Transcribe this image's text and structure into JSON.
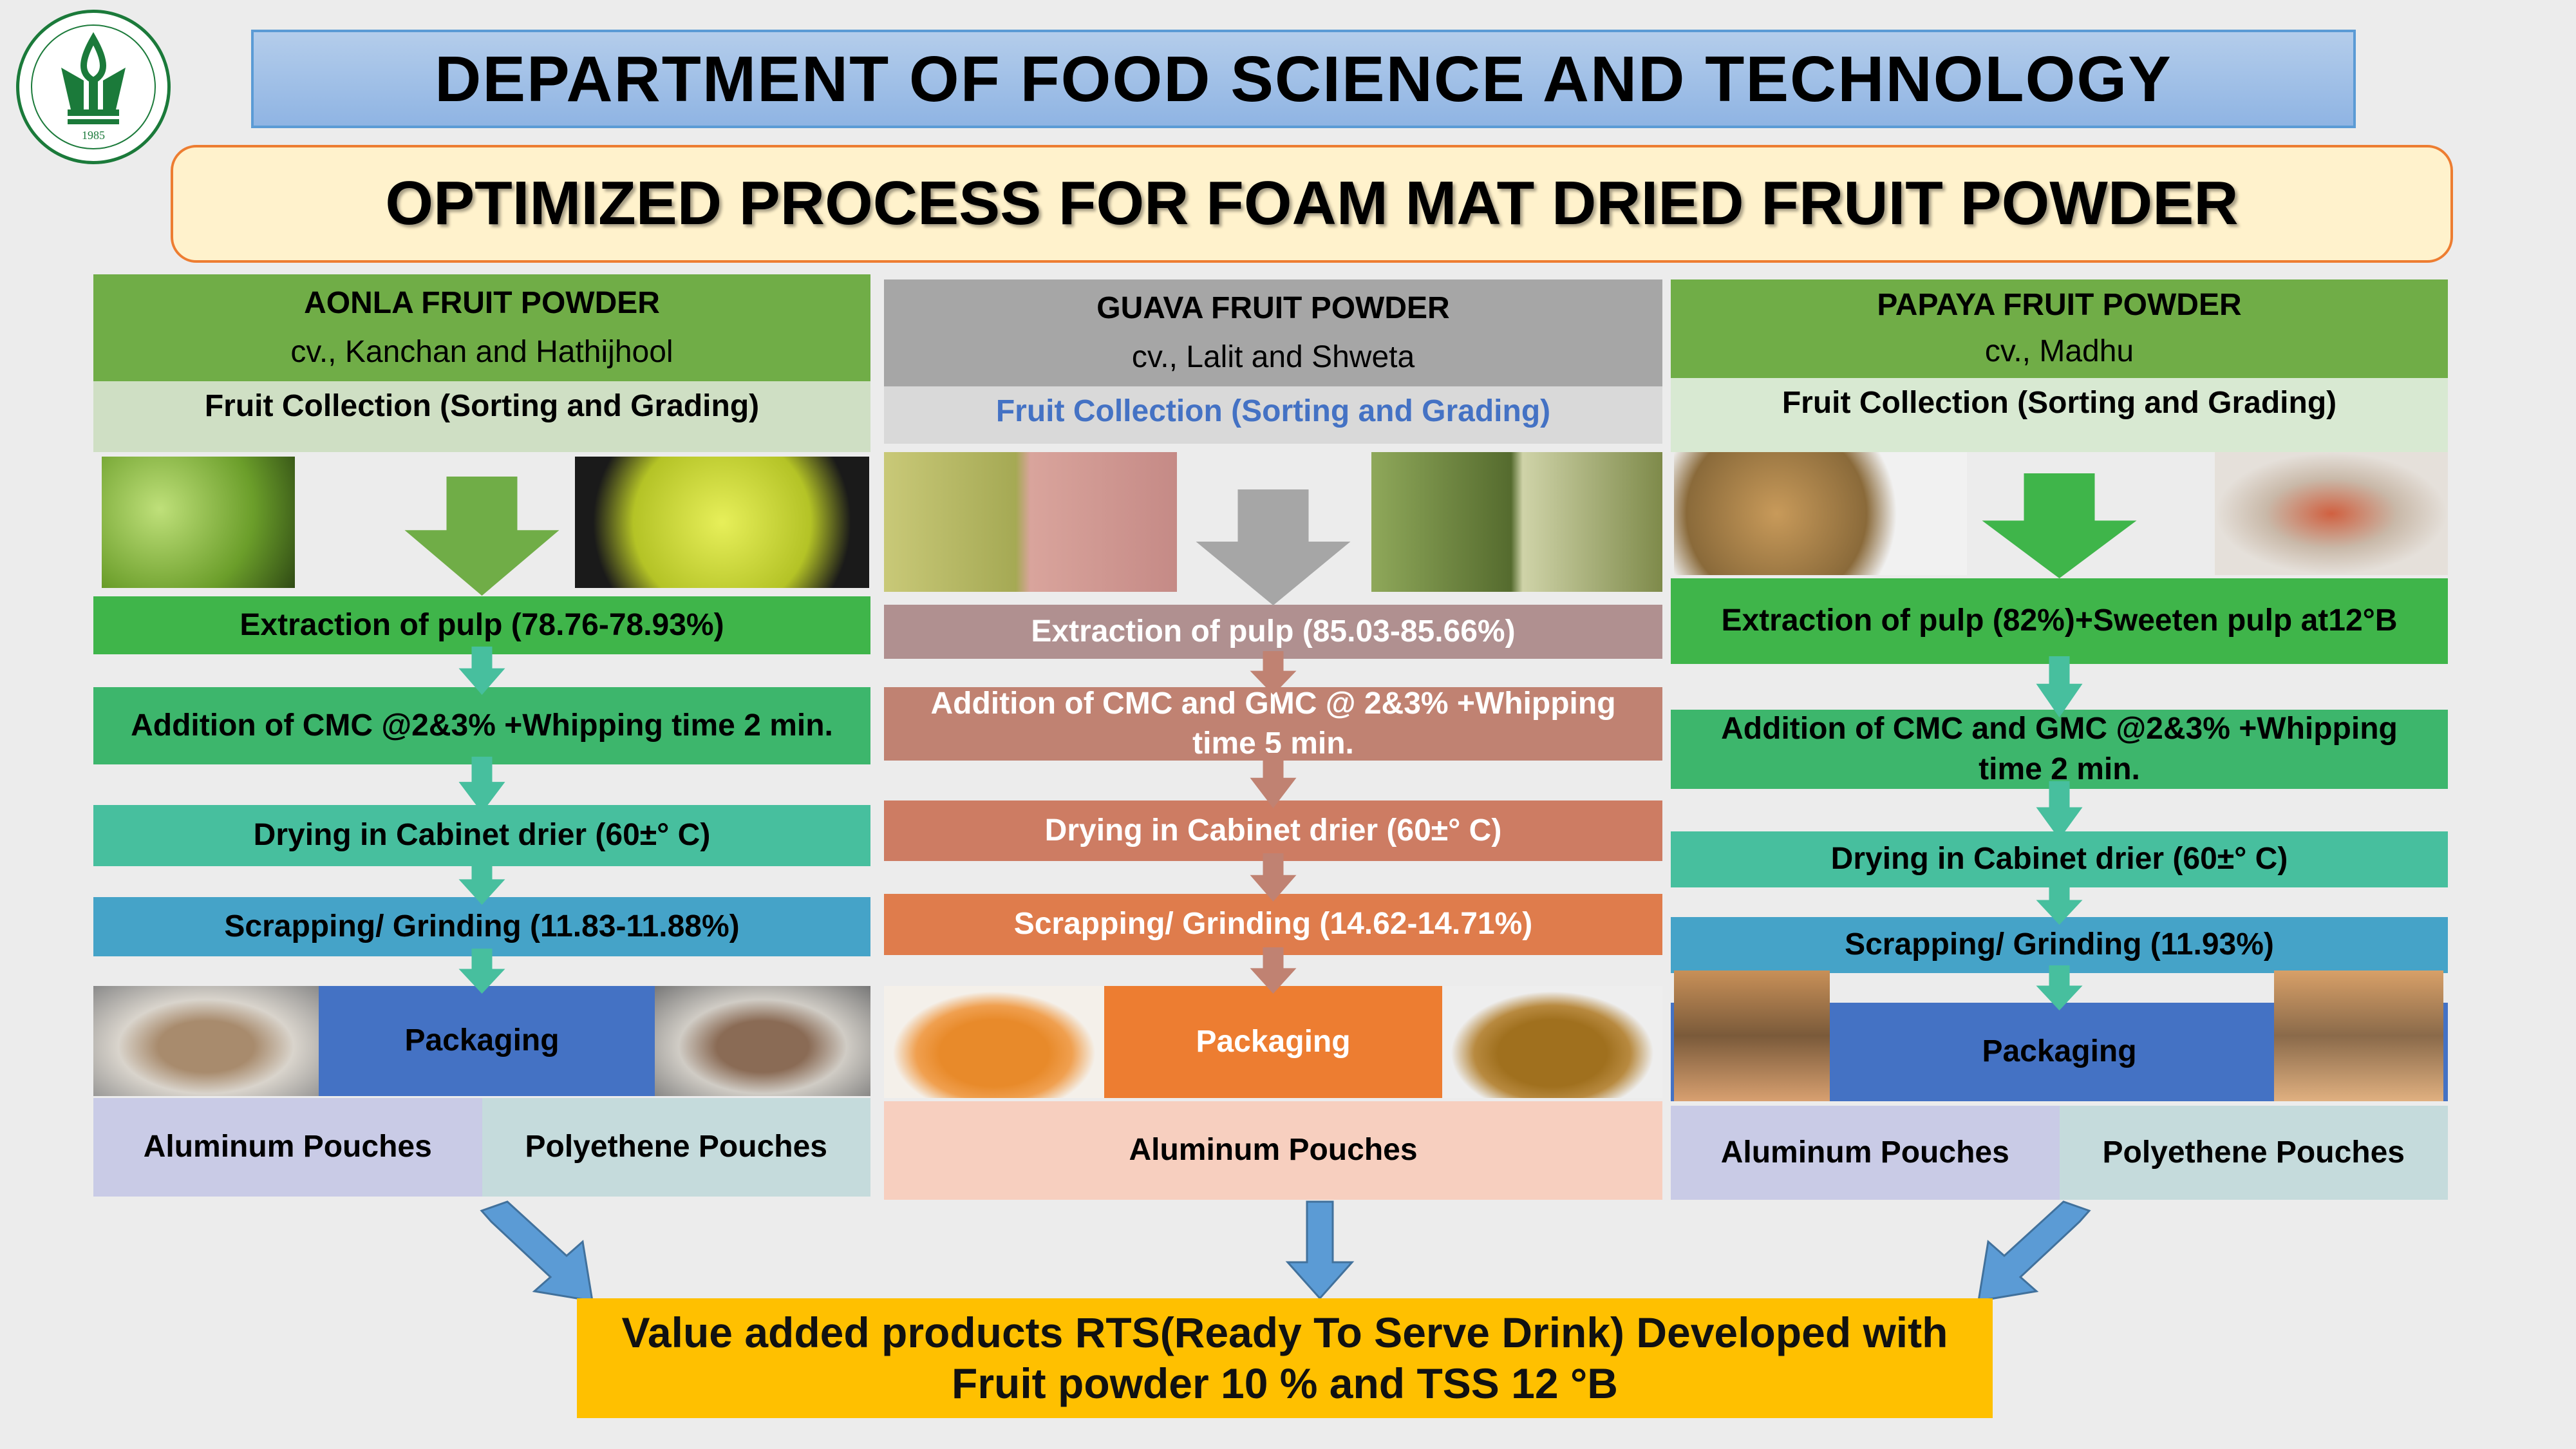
{
  "header": {
    "logo_text": "1985",
    "department": "DEPARTMENT OF FOOD SCIENCE AND TECHNOLOGY",
    "title": "OPTIMIZED PROCESS FOR FOAM MAT DRIED FRUIT POWDER"
  },
  "columns": [
    {
      "name": "AONLA FRUIT POWDER",
      "cultivar": "cv., Kanchan and Hathijhool",
      "collection": "Fruit Collection  (Sorting and Grading)",
      "extraction": "Extraction of pulp (78.76-78.93%)",
      "addition": "Addition of CMC @2&3% +Whipping time 2 min.",
      "drying": "Drying in Cabinet drier (60±° C)",
      "grinding": "Scrapping/ Grinding (11.83-11.88%)",
      "packaging": "Packaging",
      "pouches": [
        "Aluminum Pouches",
        "Polyethene Pouches"
      ],
      "colors": {
        "header": "#70ad47",
        "collection": "#cfdfc4",
        "collection_text": "#000000",
        "arrow": "#70ad47",
        "extraction": "#3fb54a",
        "addition": "#3db66c",
        "drying": "#47bf9e",
        "grinding": "#45a3c8",
        "packaging": "#4472c4",
        "packaging_text": "#000000",
        "step_text": "#000000",
        "pouch1": "#c9cbe6",
        "pouch2": "#c5dbdc"
      }
    },
    {
      "name": "GUAVA FRUIT POWDER",
      "cultivar": "cv., Lalit and Shweta",
      "collection": "Fruit Collection  (Sorting and Grading)",
      "extraction": "Extraction of pulp (85.03-85.66%)",
      "addition": "Addition of CMC and GMC @ 2&3% +Whipping time 5 min.",
      "drying": "Drying in Cabinet drier (60±° C)",
      "grinding": "Scrapping/ Grinding (14.62-14.71%)",
      "packaging": "Packaging",
      "pouches": [
        "Aluminum Pouches"
      ],
      "colors": {
        "header": "#a6a6a6",
        "collection": "#d9d9d9",
        "collection_text": "#4472c4",
        "arrow": "#a6a6a6",
        "extraction": "#b09090",
        "addition": "#c08272",
        "drying": "#cd7c63",
        "grinding": "#df7c4c",
        "packaging": "#ed7d31",
        "packaging_text": "#ffffff",
        "step_text": "#ffffff",
        "pouch1": "#f7cfbf"
      }
    },
    {
      "name": "PAPAYA FRUIT POWDER",
      "cultivar": "cv., Madhu",
      "collection": "Fruit Collection  (Sorting and Grading)",
      "extraction": "Extraction of pulp (82%)+Sweeten pulp at12°B",
      "addition": "Addition of CMC and GMC @2&3% +Whipping time 2 min.",
      "drying": "Drying in Cabinet drier (60±° C)",
      "grinding": "Scrapping/ Grinding (11.93%)",
      "packaging": "Packaging",
      "pouches": [
        "Aluminum Pouches",
        "Polyethene Pouches"
      ],
      "colors": {
        "header": "#70ad47",
        "collection": "#d8e9d2",
        "collection_text": "#000000",
        "arrow": "#3fb54a",
        "extraction": "#3fb54a",
        "addition": "#3db66c",
        "drying": "#47bf9e",
        "grinding": "#45a3c8",
        "packaging": "#4472c4",
        "packaging_text": "#000000",
        "step_text": "#000000",
        "pouch1": "#c9cbe6",
        "pouch2": "#c5dbdc"
      }
    }
  ],
  "result": "Value added products RTS(Ready To Serve Drink) Developed with Fruit powder 10 % and TSS 12 °B",
  "colors": {
    "result_bg": "#ffc000",
    "flow_arrow": "#5b9bd5",
    "logo_green": "#1b7a3a"
  }
}
